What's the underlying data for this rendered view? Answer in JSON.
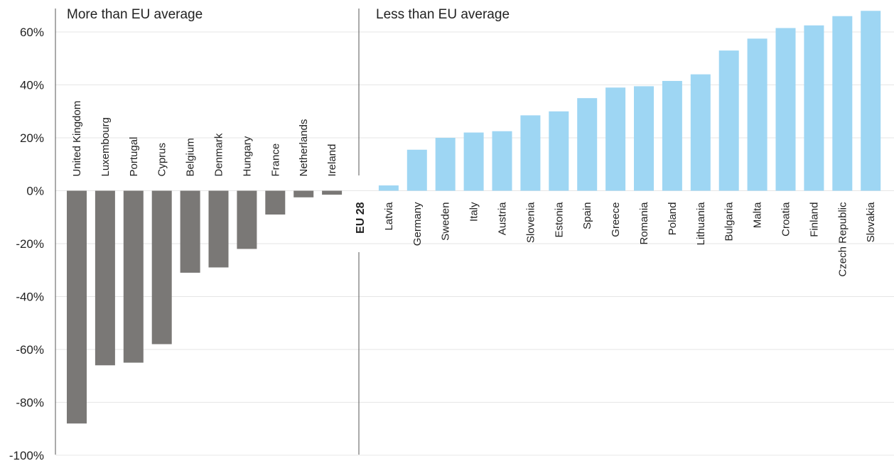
{
  "chart_data": {
    "type": "bar",
    "ylim": [
      -100,
      70
    ],
    "y_ticks": [
      60,
      40,
      20,
      0,
      -20,
      -40,
      -60,
      -80,
      -100
    ],
    "y_tick_labels": [
      "60%",
      "40%",
      "20%",
      "0%",
      "-20%",
      "-40%",
      "-60%",
      "-80%",
      "-100%"
    ],
    "grid": true,
    "section_labels": {
      "left": "More than EU average",
      "right": "Less than EU average"
    },
    "categories": [
      "United Kingdom",
      "Luxembourg",
      "Portugal",
      "Cyprus",
      "Belgium",
      "Denmark",
      "Hungary",
      "France",
      "Netherlands",
      "Ireland",
      "EU 28",
      "Latvia",
      "Germany",
      "Sweden",
      "Italy",
      "Austria",
      "Slovenia",
      "Estonia",
      "Spain",
      "Greece",
      "Romania",
      "Poland",
      "Lithuania",
      "Bulgaria",
      "Malta",
      "Croatia",
      "Finland",
      "Czech Republic",
      "Slovakia"
    ],
    "values": [
      -88,
      -66,
      -65,
      -58,
      -31,
      -29,
      -22,
      -9,
      -2.5,
      -1.5,
      0,
      2,
      15.5,
      20,
      22,
      22.5,
      28.5,
      30,
      35,
      39,
      39.5,
      41.5,
      44,
      53,
      57.5,
      61.5,
      62.5,
      66,
      68
    ],
    "reference_category": "EU 28",
    "colors": {
      "above_average": "#7a7876",
      "below_average": "#9ed6f3",
      "grid": "#e6e6e6",
      "axis": "#555555",
      "text": "#222222"
    }
  }
}
